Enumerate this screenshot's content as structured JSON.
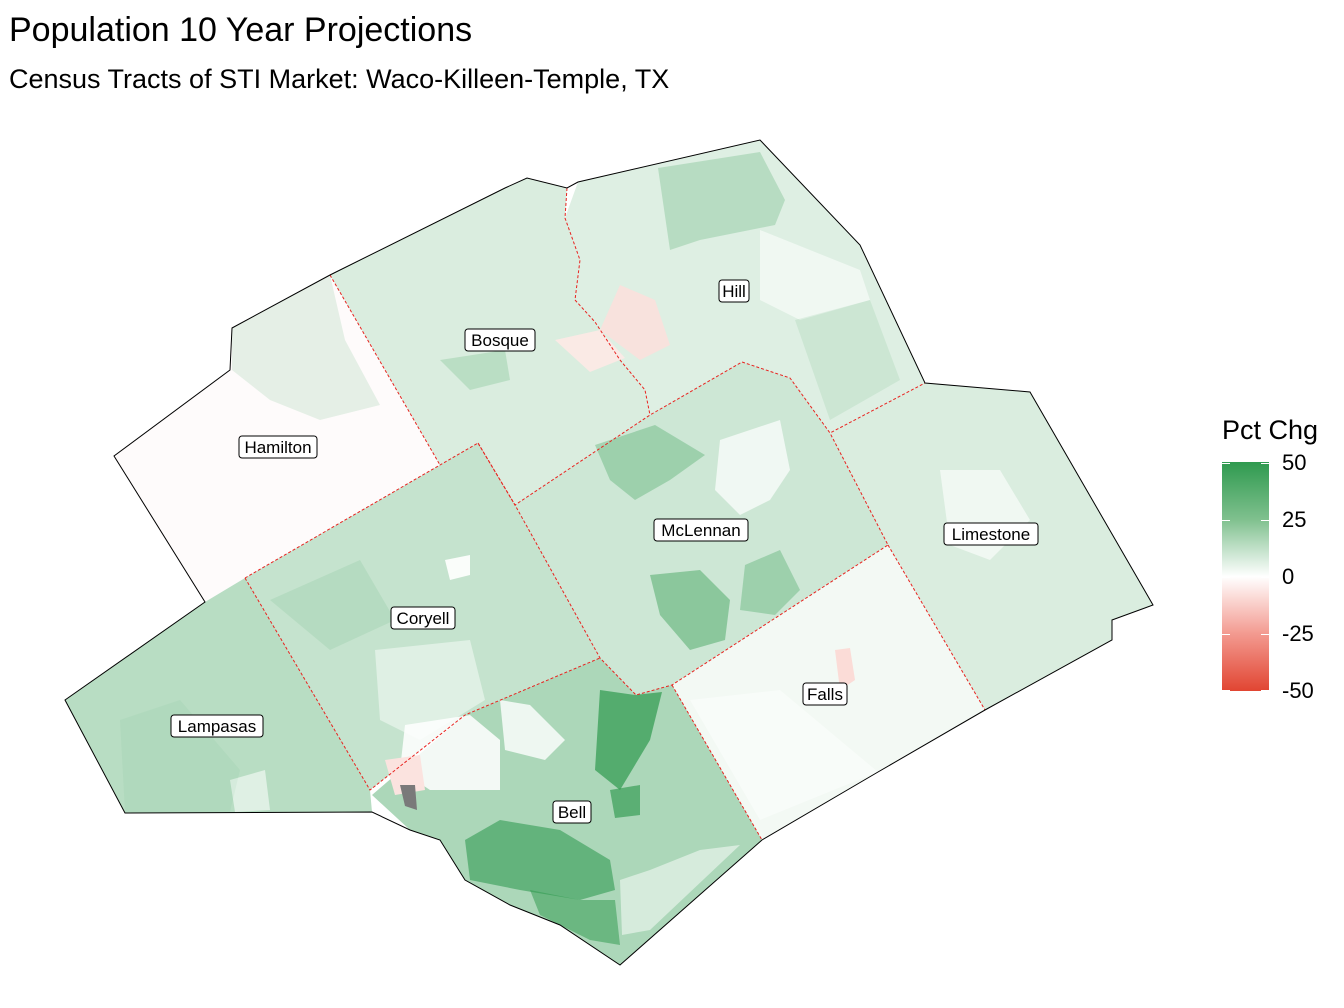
{
  "title": "Population 10 Year Projections",
  "subtitle": "Census Tracts of STI Market: Waco-Killeen-Temple, TX",
  "legend": {
    "title": "Pct Chg",
    "ticks": [
      "50",
      "25",
      "0",
      "-25",
      "-50"
    ],
    "scale_min": -50,
    "scale_max": 50,
    "low_color": "#e14532",
    "mid_color": "#ffffff",
    "high_color": "#2f9a4f",
    "na_color": "#808080"
  },
  "counties": [
    {
      "name": "Hill",
      "pct_chg": 8
    },
    {
      "name": "Bosque",
      "pct_chg": 9
    },
    {
      "name": "Hamilton",
      "pct_chg": -1
    },
    {
      "name": "McLennan",
      "pct_chg": 12
    },
    {
      "name": "Limestone",
      "pct_chg": 9
    },
    {
      "name": "Coryell",
      "pct_chg": 14
    },
    {
      "name": "Lampasas",
      "pct_chg": 17
    },
    {
      "name": "Falls",
      "pct_chg": 3
    },
    {
      "name": "Bell",
      "pct_chg": 20
    }
  ]
}
